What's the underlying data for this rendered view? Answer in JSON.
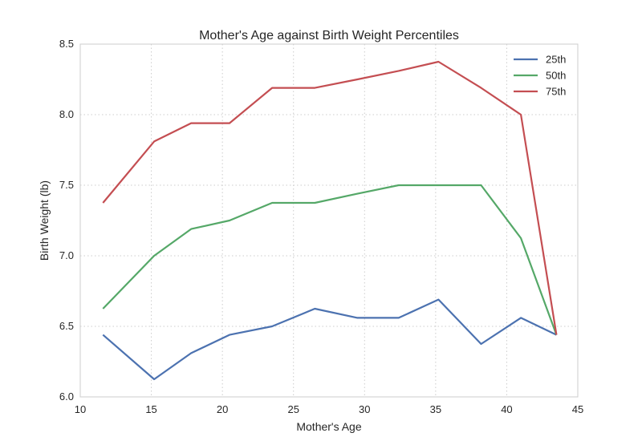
{
  "chart_data": {
    "type": "line",
    "title": "Mother's Age against Birth Weight Percentiles",
    "xlabel": "Mother's Age",
    "ylabel": "Birth Weight (lb)",
    "xlim": [
      10,
      45
    ],
    "ylim": [
      6.0,
      8.5
    ],
    "xticks": [
      "10",
      "15",
      "20",
      "25",
      "30",
      "35",
      "40",
      "45"
    ],
    "yticks": [
      "6.0",
      "6.5",
      "7.0",
      "7.5",
      "8.0",
      "8.5"
    ],
    "grid": true,
    "legend": "top-right",
    "x": [
      11.6,
      15.2,
      17.8,
      20.5,
      23.5,
      26.5,
      29.5,
      32.4,
      35.2,
      38.2,
      41.0,
      43.5
    ],
    "series": [
      {
        "name": "25th",
        "color": "#4c72b0",
        "values": [
          6.44,
          6.125,
          6.31,
          6.44,
          6.5,
          6.625,
          6.56,
          6.56,
          6.69,
          6.375,
          6.56,
          6.44
        ]
      },
      {
        "name": "50th",
        "color": "#55a868",
        "values": [
          6.625,
          7.0,
          7.19,
          7.25,
          7.375,
          7.375,
          7.44,
          7.5,
          7.5,
          7.5,
          7.125,
          6.44
        ]
      },
      {
        "name": "75th",
        "color": "#c44e52",
        "values": [
          7.375,
          7.81,
          7.94,
          7.94,
          8.19,
          8.19,
          8.25,
          8.31,
          8.375,
          8.19,
          8.0,
          6.44
        ]
      }
    ]
  }
}
